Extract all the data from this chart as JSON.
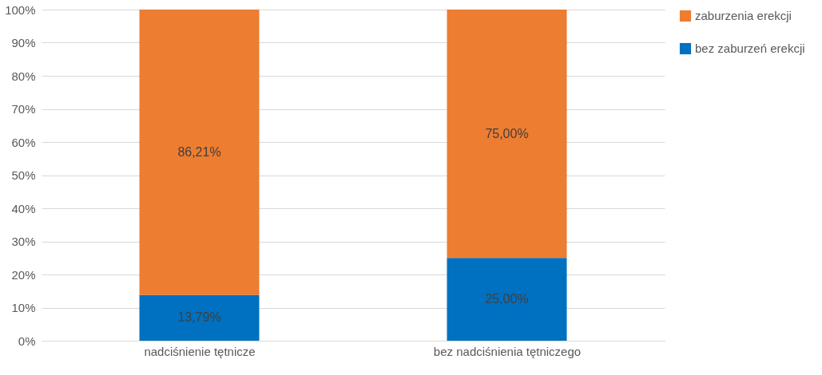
{
  "chart_data": {
    "type": "bar",
    "stacked": true,
    "categories": [
      "nadciśnienie tętnicze",
      "bez nadciśnienia tętniczego"
    ],
    "series": [
      {
        "name": "bez zaburzeń erekcji",
        "color": "#0070c0",
        "values": [
          13.79,
          25.0
        ],
        "value_labels": [
          "13,79%",
          "25,00%"
        ]
      },
      {
        "name": "zaburzenia erekcji",
        "color": "#ed7d31",
        "values": [
          86.21,
          75.0
        ],
        "value_labels": [
          "86,21%",
          "75,00%"
        ]
      }
    ],
    "ylim": [
      0,
      100
    ],
    "yticks": [
      {
        "value": 0,
        "label": "0%"
      },
      {
        "value": 10,
        "label": "10%"
      },
      {
        "value": 20,
        "label": "20%"
      },
      {
        "value": 30,
        "label": "30%"
      },
      {
        "value": 40,
        "label": "40%"
      },
      {
        "value": 50,
        "label": "50%"
      },
      {
        "value": 60,
        "label": "60%"
      },
      {
        "value": 70,
        "label": "70%"
      },
      {
        "value": 80,
        "label": "80%"
      },
      {
        "value": 90,
        "label": "90%"
      },
      {
        "value": 100,
        "label": "100%"
      }
    ],
    "grid": "y",
    "legend": "right"
  }
}
